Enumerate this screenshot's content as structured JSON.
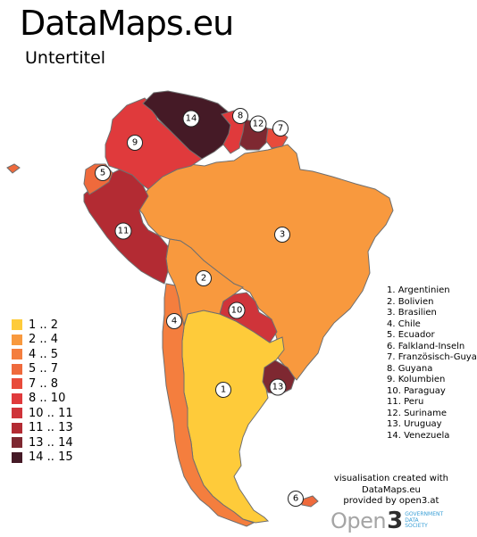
{
  "header": {
    "title": "DataMaps.eu",
    "subtitle": "Untertitel"
  },
  "colors": {
    "c1": "#fecb3a",
    "c2": "#f8993e",
    "c3": "#f47e3e",
    "c4": "#ef6a3c",
    "c5": "#e84b3b",
    "c6": "#e03a3c",
    "c7": "#cf343a",
    "c8": "#b32b33",
    "c9": "#7e2831",
    "c10": "#451a26",
    "border": "#6f6f6f"
  },
  "legend": [
    {
      "label": "1 .. 2",
      "color": "#fecb3a"
    },
    {
      "label": "2 .. 4",
      "color": "#f8993e"
    },
    {
      "label": "4 .. 5",
      "color": "#f47e3e"
    },
    {
      "label": "5 .. 7",
      "color": "#ef6a3c"
    },
    {
      "label": "7 .. 8",
      "color": "#e84b3b"
    },
    {
      "label": "8 .. 10",
      "color": "#e03a3c"
    },
    {
      "label": "10 .. 11",
      "color": "#cf343a"
    },
    {
      "label": "11 .. 13",
      "color": "#b32b33"
    },
    {
      "label": "13 .. 14",
      "color": "#7e2831"
    },
    {
      "label": "14 .. 15",
      "color": "#451a26"
    }
  ],
  "countries": [
    {
      "num": "1",
      "name": "Argentinien",
      "color": "#fecb3a"
    },
    {
      "num": "2",
      "name": "Bolivien",
      "color": "#f8993e"
    },
    {
      "num": "3",
      "name": "Brasilien",
      "color": "#f8993e"
    },
    {
      "num": "4",
      "name": "Chile",
      "color": "#f47e3e"
    },
    {
      "num": "5",
      "name": "Ecuador",
      "color": "#ef6a3c"
    },
    {
      "num": "6",
      "name": "Falkland-Inseln",
      "color": "#ef6a3c"
    },
    {
      "num": "7",
      "name": "Französisch-Guyana",
      "color": "#e84b3b"
    },
    {
      "num": "8",
      "name": "Guyana",
      "color": "#e03a3c"
    },
    {
      "num": "9",
      "name": "Kolumbien",
      "color": "#e03a3c"
    },
    {
      "num": "10",
      "name": "Paraguay",
      "color": "#cf343a"
    },
    {
      "num": "11",
      "name": "Peru",
      "color": "#b32b33"
    },
    {
      "num": "12",
      "name": "Suriname",
      "color": "#7e2831"
    },
    {
      "num": "13",
      "name": "Uruguay",
      "color": "#7e2831"
    },
    {
      "num": "14",
      "name": "Venezuela",
      "color": "#451a26"
    }
  ],
  "list": [
    "1. Argentinien",
    "2. Bolivien",
    "3. Brasilien",
    "4. Chile",
    "5. Ecuador",
    "6. Falkland-Inseln",
    "7. Französisch-Guya",
    "8. Guyana",
    "9. Kolumbien",
    "10. Paraguay",
    "11. Peru",
    "12. Suriname",
    "13. Uruguay",
    "14. Venezuela"
  ],
  "credit": {
    "line1": "visualisation created with",
    "line2": "DataMaps.eu",
    "line3": "provided by open3.at"
  },
  "logo": {
    "word": "Open",
    "digit": "3",
    "tag1": "GOVERNMENT",
    "tag2": "DATA",
    "tag3": "SOCIETY"
  }
}
